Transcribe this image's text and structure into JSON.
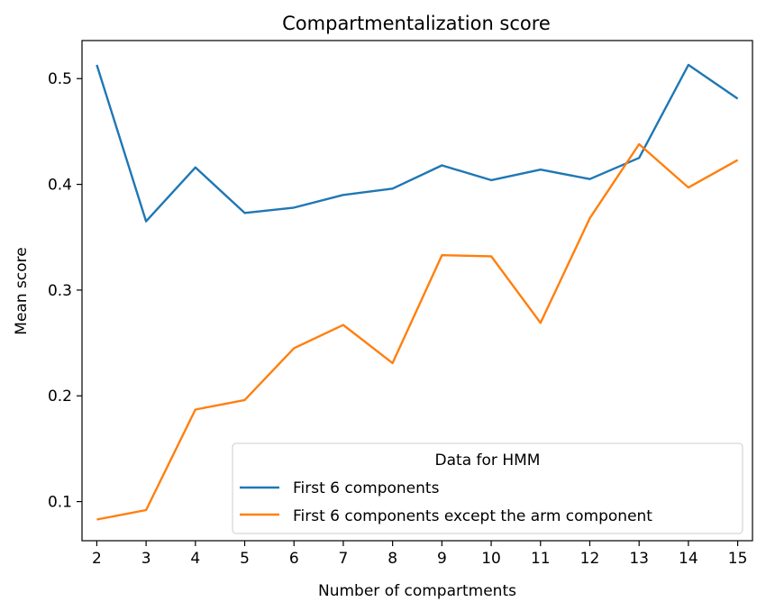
{
  "chart_data": {
    "type": "line",
    "title": "Compartmentalization score",
    "xlabel": "Number of compartments",
    "ylabel": "Mean score",
    "x": [
      2,
      3,
      4,
      5,
      6,
      7,
      8,
      9,
      10,
      11,
      12,
      13,
      14,
      15
    ],
    "xlim": [
      1.7,
      15.3
    ],
    "ylim": [
      0.063,
      0.536
    ],
    "xticks": [
      "2",
      "3",
      "4",
      "5",
      "6",
      "7",
      "8",
      "9",
      "10",
      "11",
      "12",
      "13",
      "14",
      "15"
    ],
    "yticks": [
      0.1,
      0.2,
      0.3,
      0.4,
      0.5
    ],
    "ytick_labels": [
      "0.1",
      "0.2",
      "0.3",
      "0.4",
      "0.5"
    ],
    "grid": false,
    "legend": {
      "title": "Data for HMM",
      "placement": "lower-right"
    },
    "series": [
      {
        "name": "First 6 components",
        "color": "#1f77b4",
        "values": [
          0.513,
          0.365,
          0.416,
          0.373,
          0.378,
          0.39,
          0.396,
          0.418,
          0.404,
          0.414,
          0.405,
          0.425,
          0.513,
          0.481
        ]
      },
      {
        "name": "First 6 components except the arm component",
        "color": "#ff7f0e",
        "values": [
          0.083,
          0.092,
          0.187,
          0.196,
          0.245,
          0.267,
          0.231,
          0.333,
          0.332,
          0.269,
          0.368,
          0.438,
          0.397,
          0.423
        ]
      }
    ]
  }
}
